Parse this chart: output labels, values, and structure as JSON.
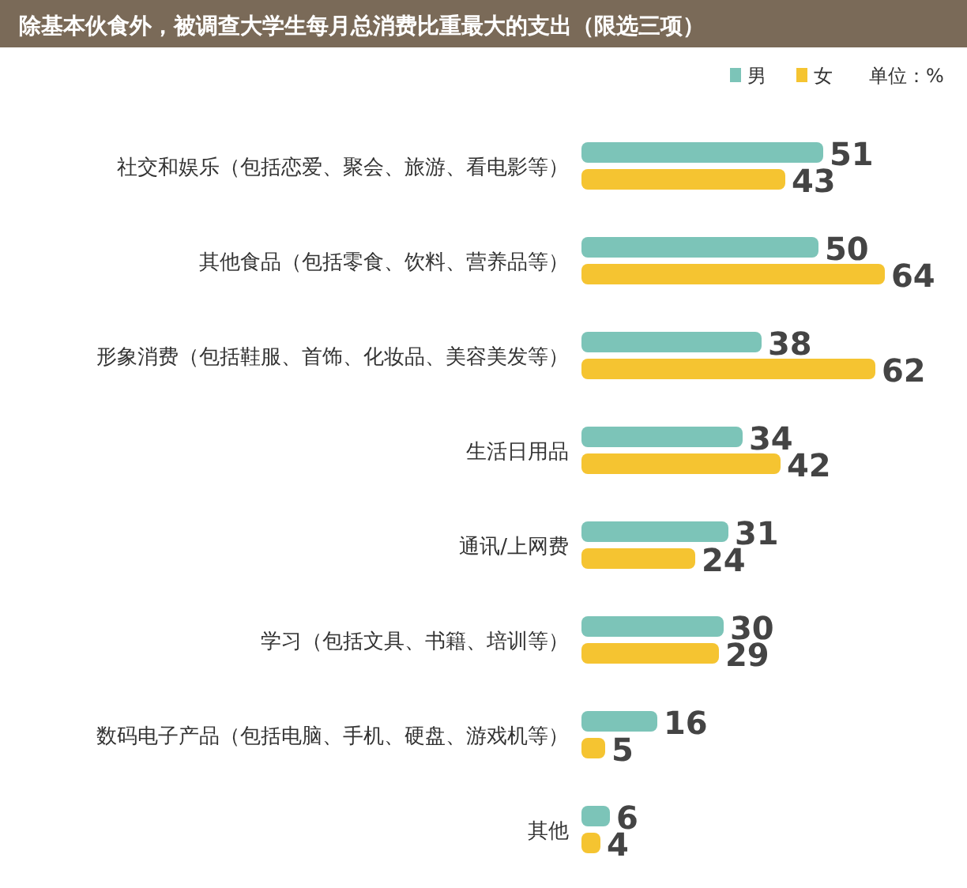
{
  "chart_data": {
    "type": "bar",
    "orientation": "horizontal",
    "title": "除基本伙食外，被调查大学生每月总消费比重最大的支出（限选三项）",
    "categories": [
      "社交和娱乐（包括恋爱、聚会、旅游、看电影等）",
      "其他食品（包括零食、饮料、营养品等）",
      "形象消费（包括鞋服、首饰、化妆品、美容美发等）",
      "生活日用品",
      "通讯/上网费",
      "学习（包括文具、书籍、培训等）",
      "数码电子产品（包括电脑、手机、硬盘、游戏机等）",
      "其他"
    ],
    "series": [
      {
        "name": "男",
        "color": "#7cc4b8",
        "values": [
          51,
          50,
          38,
          34,
          31,
          30,
          16,
          6
        ]
      },
      {
        "name": "女",
        "color": "#f5c431",
        "values": [
          43,
          64,
          62,
          42,
          24,
          29,
          5,
          4
        ]
      }
    ],
    "data_labels": true,
    "legend": "top right",
    "annotations": [
      "单位：%"
    ]
  }
}
